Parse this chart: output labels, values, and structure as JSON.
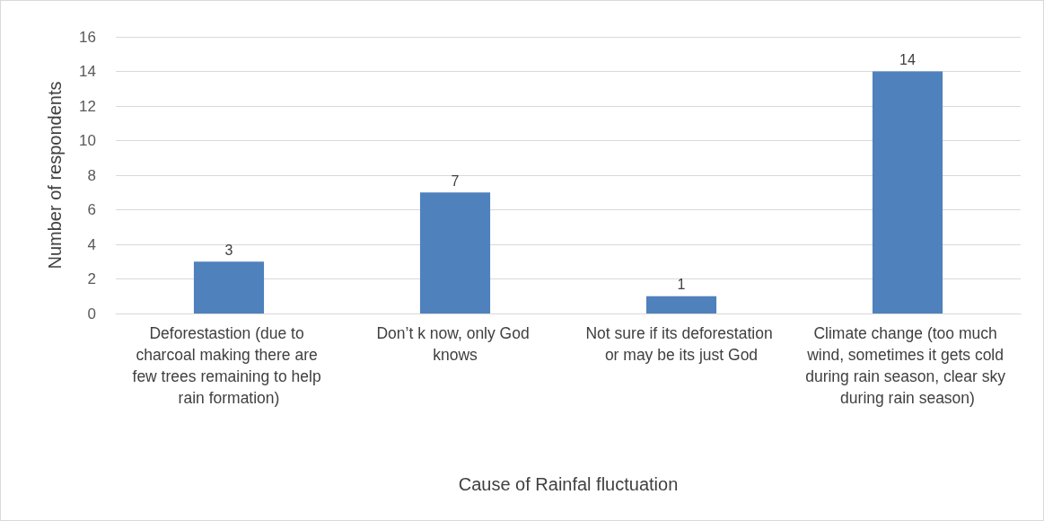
{
  "chart_data": {
    "type": "bar",
    "xlabel": "Cause of Rainfal fluctuation",
    "ylabel": "Number of respondents",
    "categories": [
      "Deforestastion (due to charcoal making there are few trees remaining to help rain formation)",
      "Don’t k now, only God knows",
      "Not sure if its deforestation or may be its just God",
      "Climate change (too much wind, sometimes it gets cold during rain season, clear sky during rain season)"
    ],
    "values": [
      3,
      7,
      1,
      14
    ],
    "color": "#4f81bd",
    "ylim": [
      0,
      16
    ],
    "yticks": [
      0,
      2,
      4,
      6,
      8,
      10,
      12,
      14,
      16
    ],
    "grid": "y",
    "data_labels": true
  }
}
